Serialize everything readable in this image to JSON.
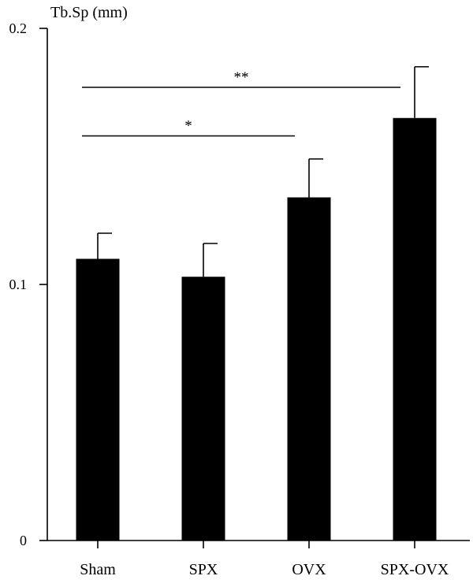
{
  "chart_data": {
    "type": "bar",
    "title": "",
    "xlabel": "",
    "ylabel": "Tb.Sp (mm)",
    "ylim": [
      0,
      0.2
    ],
    "yticks": [
      {
        "value": 0,
        "label": "0"
      },
      {
        "value": 0.1,
        "label": "0.1"
      },
      {
        "value": 0.2,
        "label": "0.2"
      }
    ],
    "categories": [
      "Sham",
      "SPX",
      "OVX",
      "SPX-OVX"
    ],
    "values": [
      0.11,
      0.103,
      0.134,
      0.165
    ],
    "errors": [
      0.01,
      0.013,
      0.015,
      0.02
    ],
    "bar_color": "#000000",
    "grid": false,
    "legend": "none",
    "annotations": [
      {
        "label": "*",
        "from": 0,
        "to": 2,
        "y": 0.158
      },
      {
        "label": "**",
        "from": 0,
        "to": 3,
        "y": 0.177
      }
    ]
  }
}
